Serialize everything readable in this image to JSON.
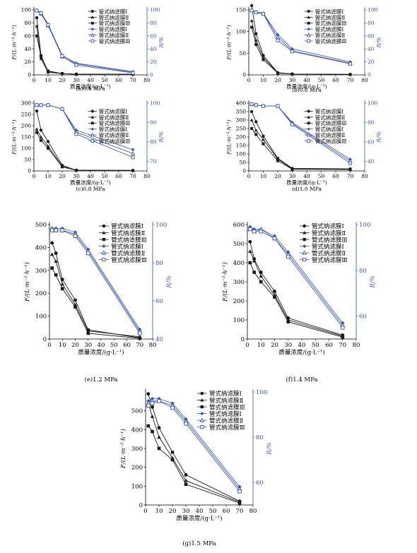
{
  "colors": {
    "black_series": "#1a1a1a",
    "blue_series": "#3a55a5",
    "axis": "#000000"
  },
  "chart_data": [
    {
      "type": "line",
      "caption": "(a)0.4 MPa",
      "xlabel": "质量浓度/(g·L⁻¹)",
      "ylabel_left": "F/(L·m⁻²·h⁻¹)",
      "ylabel_right": "R/%",
      "xlim": [
        0,
        80
      ],
      "xticks": [
        0,
        10,
        20,
        30,
        40,
        50,
        60,
        70,
        80
      ],
      "ylim_left": [
        0,
        100
      ],
      "yticks_left": [
        0,
        20,
        40,
        60,
        80,
        100
      ],
      "ylim_right": [
        0,
        100
      ],
      "yticks_right": [
        0,
        20,
        40,
        60,
        80,
        100
      ],
      "x": [
        2,
        5,
        10,
        20,
        30,
        70
      ],
      "series": [
        {
          "name": "管式纳滤膜Ⅰ",
          "axis": "left",
          "color": "black",
          "marker": "circle",
          "values": [
            88,
            30,
            5,
            2,
            1,
            1
          ]
        },
        {
          "name": "管式纳滤膜Ⅱ",
          "axis": "left",
          "color": "black",
          "marker": "triangle",
          "values": [
            75,
            25,
            4,
            2,
            1,
            1
          ]
        },
        {
          "name": "管式纳滤膜Ⅲ",
          "axis": "left",
          "color": "black",
          "marker": "square",
          "values": [
            60,
            28,
            6,
            2,
            1,
            1
          ]
        },
        {
          "name": "管式纳滤膜Ⅰ",
          "axis": "right",
          "color": "blue",
          "marker": "diamond",
          "values": [
            99,
            96,
            78,
            30,
            18,
            5
          ]
        },
        {
          "name": "管式纳滤膜Ⅱ",
          "axis": "right",
          "color": "blue",
          "marker": "triangle-open",
          "values": [
            99,
            94,
            76,
            28,
            17,
            4
          ]
        },
        {
          "name": "管式纳滤膜Ⅲ",
          "axis": "right",
          "color": "blue",
          "marker": "square-open",
          "values": [
            99,
            95,
            77,
            29,
            15,
            3
          ]
        }
      ]
    },
    {
      "type": "line",
      "caption": "(b)0.6 MPa",
      "xlabel": "质量浓度/(g·L⁻¹)",
      "ylabel_left": "F/(L·m⁻²·h⁻¹)",
      "ylabel_right": "R/%",
      "xlim": [
        0,
        80
      ],
      "xticks": [
        0,
        10,
        20,
        30,
        40,
        50,
        60,
        70,
        80
      ],
      "ylim_left": [
        0,
        150
      ],
      "yticks_left": [
        0,
        50,
        100,
        150
      ],
      "ylim_right": [
        0,
        100
      ],
      "yticks_right": [
        0,
        20,
        40,
        60,
        80,
        100
      ],
      "x": [
        2,
        5,
        10,
        20,
        30,
        70
      ],
      "series": [
        {
          "name": "管式纳滤膜Ⅰ",
          "axis": "left",
          "color": "black",
          "marker": "circle",
          "values": [
            160,
            95,
            45,
            5,
            2,
            1
          ]
        },
        {
          "name": "管式纳滤膜Ⅱ",
          "axis": "left",
          "color": "black",
          "marker": "triangle",
          "values": [
            125,
            80,
            40,
            5,
            2,
            1
          ]
        },
        {
          "name": "管式纳滤膜Ⅲ",
          "axis": "left",
          "color": "black",
          "marker": "square",
          "values": [
            110,
            70,
            35,
            4,
            2,
            1
          ]
        },
        {
          "name": "管式纳滤膜Ⅰ",
          "axis": "right",
          "color": "blue",
          "marker": "diamond",
          "values": [
            99,
            97,
            95,
            62,
            40,
            20
          ]
        },
        {
          "name": "管式纳滤膜Ⅱ",
          "axis": "right",
          "color": "blue",
          "marker": "triangle-open",
          "values": [
            99,
            96,
            94,
            58,
            37,
            18
          ]
        },
        {
          "name": "管式纳滤膜Ⅲ",
          "axis": "right",
          "color": "blue",
          "marker": "square-open",
          "values": [
            99,
            96,
            94,
            53,
            36,
            17
          ]
        }
      ]
    },
    {
      "type": "line",
      "caption": "(c)0.8 MPa",
      "xlabel": "质量浓度/(g·L⁻¹)",
      "ylabel_left": "F/(L·m⁻²·h⁻¹)",
      "ylabel_right": "R/%",
      "xlim": [
        0,
        80
      ],
      "xticks": [
        0,
        10,
        20,
        30,
        40,
        50,
        60,
        70,
        80
      ],
      "ylim_left": [
        0,
        300
      ],
      "yticks_left": [
        0,
        50,
        100,
        150,
        200,
        250,
        300
      ],
      "ylim_right": [
        65,
        100
      ],
      "yticks_right": [
        70,
        80,
        90,
        100
      ],
      "x": [
        2,
        5,
        10,
        20,
        30,
        70
      ],
      "series": [
        {
          "name": "管式纳滤膜Ⅰ",
          "axis": "left",
          "color": "black",
          "marker": "circle",
          "values": [
            265,
            180,
            130,
            25,
            3,
            2
          ]
        },
        {
          "name": "管式纳滤膜Ⅱ",
          "axis": "left",
          "color": "black",
          "marker": "triangle",
          "values": [
            185,
            150,
            110,
            20,
            3,
            2
          ]
        },
        {
          "name": "管式纳滤膜Ⅲ",
          "axis": "left",
          "color": "black",
          "marker": "square",
          "values": [
            170,
            135,
            100,
            18,
            3,
            2
          ]
        },
        {
          "name": "管式纳滤膜Ⅰ",
          "axis": "right",
          "color": "blue",
          "marker": "diamond",
          "values": [
            99,
            99,
            99,
            97,
            86,
            76
          ]
        },
        {
          "name": "管式纳滤膜Ⅱ",
          "axis": "right",
          "color": "blue",
          "marker": "triangle-open",
          "values": [
            99,
            99,
            99,
            97,
            85,
            74
          ]
        },
        {
          "name": "管式纳滤膜Ⅲ",
          "axis": "right",
          "color": "blue",
          "marker": "square-open",
          "values": [
            99,
            99,
            99,
            97,
            84,
            72
          ]
        }
      ]
    },
    {
      "type": "line",
      "caption": "(d)1.0 MPa",
      "xlabel": "质量浓度/(g·L⁻¹)",
      "ylabel_left": "F/(L·m⁻²·h⁻¹)",
      "ylabel_right": "R/%",
      "xlim": [
        0,
        80
      ],
      "xticks": [
        0,
        10,
        20,
        30,
        40,
        50,
        60,
        70,
        80
      ],
      "ylim_left": [
        0,
        400
      ],
      "yticks_left": [
        0,
        50,
        100,
        150,
        200,
        250,
        300,
        350,
        400
      ],
      "ylim_right": [
        30,
        100
      ],
      "yticks_right": [
        40,
        60,
        80,
        100
      ],
      "x": [
        2,
        5,
        10,
        20,
        30,
        70
      ],
      "series": [
        {
          "name": "管式纳滤膜Ⅰ",
          "axis": "left",
          "color": "black",
          "marker": "circle",
          "values": [
            350,
            290,
            205,
            75,
            15,
            12
          ]
        },
        {
          "name": "管式纳滤膜Ⅱ",
          "axis": "left",
          "color": "black",
          "marker": "triangle",
          "values": [
            300,
            240,
            185,
            70,
            12,
            10
          ]
        },
        {
          "name": "管式纳滤膜Ⅲ",
          "axis": "left",
          "color": "black",
          "marker": "square",
          "values": [
            250,
            215,
            160,
            60,
            10,
            8
          ]
        },
        {
          "name": "管式纳滤膜Ⅰ",
          "axis": "right",
          "color": "blue",
          "marker": "diamond",
          "values": [
            99,
            98,
            97,
            97,
            80,
            42
          ]
        },
        {
          "name": "管式纳滤膜Ⅱ",
          "axis": "right",
          "color": "blue",
          "marker": "triangle-open",
          "values": [
            99,
            98,
            97,
            97,
            79,
            40
          ]
        },
        {
          "name": "管式纳滤膜Ⅲ",
          "axis": "right",
          "color": "blue",
          "marker": "square-open",
          "values": [
            99,
            98,
            97,
            97,
            78,
            38
          ]
        }
      ]
    },
    {
      "type": "line",
      "caption": "(e)1.2 MPa",
      "xlabel": "质量浓度/(g·L⁻¹)",
      "ylabel_left": "F/(L·m⁻²·h⁻¹)",
      "ylabel_right": "R/%",
      "xlim": [
        0,
        80
      ],
      "xticks": [
        0,
        10,
        20,
        30,
        40,
        50,
        60,
        70,
        80
      ],
      "ylim_left": [
        0,
        500
      ],
      "yticks_left": [
        0,
        100,
        200,
        300,
        400,
        500
      ],
      "ylim_right": [
        40,
        100
      ],
      "yticks_right": [
        40,
        60,
        80,
        100
      ],
      "x": [
        2,
        5,
        10,
        20,
        30,
        70
      ],
      "series": [
        {
          "name": "管式纳滤膜Ⅰ",
          "axis": "left",
          "color": "black",
          "marker": "circle",
          "values": [
            420,
            375,
            260,
            170,
            40,
            5
          ]
        },
        {
          "name": "管式纳滤膜Ⅱ",
          "axis": "left",
          "color": "black",
          "marker": "triangle",
          "values": [
            370,
            340,
            240,
            150,
            35,
            10
          ]
        },
        {
          "name": "管式纳滤膜Ⅲ",
          "axis": "left",
          "color": "black",
          "marker": "square",
          "values": [
            310,
            280,
            220,
            140,
            25,
            3
          ]
        },
        {
          "name": "管式纳滤膜Ⅰ",
          "axis": "right",
          "color": "blue",
          "marker": "diamond",
          "values": [
            98,
            98,
            98,
            96,
            87,
            45
          ]
        },
        {
          "name": "管式纳滤膜Ⅱ",
          "axis": "right",
          "color": "blue",
          "marker": "triangle-open",
          "values": [
            98,
            97,
            97,
            95,
            86,
            44
          ]
        },
        {
          "name": "管式纳滤膜Ⅲ",
          "axis": "right",
          "color": "blue",
          "marker": "square-open",
          "values": [
            97,
            97,
            97,
            94,
            85,
            43
          ]
        }
      ]
    },
    {
      "type": "line",
      "caption": "(f)1.4 MPa",
      "xlabel": "质量浓度/(g·L⁻¹)",
      "ylabel_left": "F/(L·m⁻²·h⁻¹)",
      "ylabel_right": "R/%",
      "xlim": [
        0,
        80
      ],
      "xticks": [
        0,
        10,
        20,
        30,
        40,
        50,
        60,
        70,
        80
      ],
      "ylim_left": [
        0,
        600
      ],
      "yticks_left": [
        0,
        100,
        200,
        300,
        400,
        500,
        600
      ],
      "ylim_right": [
        50,
        100
      ],
      "yticks_right": [
        60,
        80,
        100
      ],
      "x": [
        2,
        5,
        10,
        20,
        30,
        70
      ],
      "series": [
        {
          "name": "管式纳滤膜Ⅰ",
          "axis": "left",
          "color": "black",
          "marker": "circle",
          "values": [
            510,
            420,
            350,
            250,
            110,
            20
          ]
        },
        {
          "name": "管式纳滤膜Ⅱ",
          "axis": "left",
          "color": "black",
          "marker": "triangle",
          "values": [
            460,
            410,
            330,
            230,
            100,
            15
          ]
        },
        {
          "name": "管式纳滤膜Ⅲ",
          "axis": "left",
          "color": "black",
          "marker": "square",
          "values": [
            400,
            350,
            300,
            220,
            90,
            10
          ]
        },
        {
          "name": "管式纳滤膜Ⅰ",
          "axis": "right",
          "color": "blue",
          "marker": "diamond",
          "values": [
            99,
            98,
            98,
            95,
            88,
            57
          ]
        },
        {
          "name": "管式纳滤膜Ⅱ",
          "axis": "right",
          "color": "blue",
          "marker": "triangle-open",
          "values": [
            98,
            97,
            98,
            94,
            87,
            56
          ]
        },
        {
          "name": "管式纳滤膜Ⅲ",
          "axis": "right",
          "color": "blue",
          "marker": "square-open",
          "values": [
            98,
            97,
            97,
            94,
            86,
            55
          ]
        }
      ]
    },
    {
      "type": "line",
      "caption": "(g)1.5 MPa",
      "xlabel": "质量浓度/(g·L⁻¹)",
      "ylabel_left": "F/(L·m⁻²·h⁻¹)",
      "ylabel_right": "R/%",
      "xlim": [
        0,
        80
      ],
      "xticks": [
        0,
        10,
        20,
        30,
        40,
        50,
        60,
        70,
        80
      ],
      "ylim_left": [
        0,
        600
      ],
      "yticks_left": [
        0,
        100,
        200,
        300,
        400,
        500
      ],
      "ylim_right": [
        50,
        100
      ],
      "yticks_right": [
        60,
        80,
        100
      ],
      "x": [
        2,
        5,
        10,
        20,
        30,
        70
      ],
      "series": [
        {
          "name": "管式纳滤膜Ⅰ",
          "axis": "left",
          "color": "black",
          "marker": "circle",
          "values": [
            590,
            520,
            410,
            280,
            160,
            20
          ]
        },
        {
          "name": "管式纳滤膜Ⅱ",
          "axis": "left",
          "color": "black",
          "marker": "triangle",
          "values": [
            540,
            470,
            360,
            250,
            130,
            15
          ]
        },
        {
          "name": "管式纳滤膜Ⅲ",
          "axis": "left",
          "color": "black",
          "marker": "square",
          "values": [
            420,
            390,
            300,
            240,
            110,
            10
          ]
        },
        {
          "name": "管式纳滤膜Ⅰ",
          "axis": "right",
          "color": "blue",
          "marker": "diamond",
          "values": [
            96,
            97,
            97,
            95,
            88,
            58
          ]
        },
        {
          "name": "管式纳滤膜Ⅱ",
          "axis": "right",
          "color": "blue",
          "marker": "triangle-open",
          "values": [
            95,
            96,
            96,
            94,
            87,
            57
          ]
        },
        {
          "name": "管式纳滤膜Ⅲ",
          "axis": "right",
          "color": "blue",
          "marker": "square-open",
          "values": [
            94,
            95,
            96,
            93,
            86,
            56
          ]
        }
      ]
    }
  ]
}
